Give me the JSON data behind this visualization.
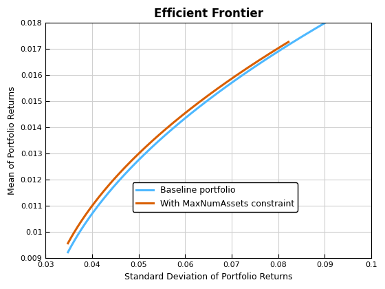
{
  "title": "Efficient Frontier",
  "xlabel": "Standard Deviation of Portfolio Returns",
  "ylabel": "Mean of Portfolio Returns",
  "xlim": [
    0.03,
    0.1
  ],
  "ylim": [
    0.009,
    0.018
  ],
  "xticks": [
    0.03,
    0.04,
    0.05,
    0.06,
    0.07,
    0.08,
    0.09,
    0.1
  ],
  "yticks": [
    0.009,
    0.01,
    0.011,
    0.012,
    0.013,
    0.014,
    0.015,
    0.016,
    0.017,
    0.018
  ],
  "baseline_color": "#4db8ff",
  "constrained_color": "#d95f02",
  "baseline_label": "Baseline portfolio",
  "constrained_label": "With MaxNumAssets constraint",
  "baseline_linewidth": 2.2,
  "constrained_linewidth": 2.2,
  "grid_color": "#d0d0d0",
  "background_color": "#ffffff",
  "title_fontsize": 12,
  "axis_fontsize": 9,
  "legend_fontsize": 9
}
